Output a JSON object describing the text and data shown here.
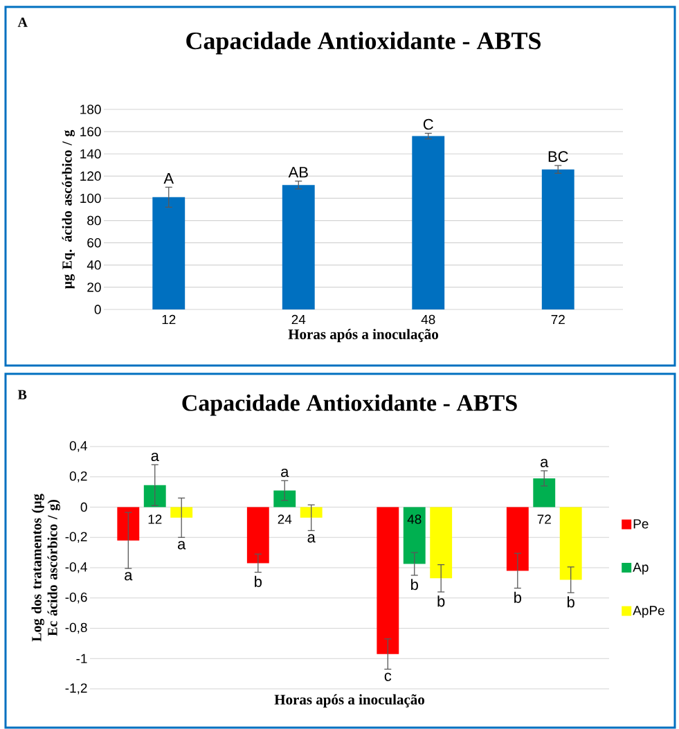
{
  "chart_data": [
    {
      "type": "bar",
      "title": "Capacidade Antioxidante - ABTS",
      "xlabel": "Horas após a inoculação",
      "ylabel": "µg Eq. ácido ascórbico / g",
      "categories": [
        "12",
        "24",
        "48",
        "72"
      ],
      "values": [
        101,
        112,
        156,
        126
      ],
      "errors": [
        9,
        3.5,
        2.5,
        3.5
      ],
      "color": "#0070c0",
      "ylim": [
        0,
        180
      ],
      "yticks": [
        0,
        20,
        40,
        60,
        80,
        100,
        120,
        140,
        160,
        180
      ],
      "grid": "y",
      "annotations": [
        "A",
        {
          "text": "A",
          "x": "12",
          "y": 110
        },
        {
          "text": "AB",
          "x": "24",
          "y": 115.5
        },
        {
          "text": "C",
          "x": "48",
          "y": 158.5
        },
        {
          "text": "BC",
          "x": "72",
          "y": 129.5
        }
      ]
    },
    {
      "type": "bar",
      "title": "Capacidade Antioxidante - ABTS",
      "xlabel": "Horas após a inoculação",
      "ylabel": "Log dos tratamentos (µg Ec ácido ascórbico / g)",
      "categories": [
        "12",
        "24",
        "48",
        "72"
      ],
      "series": [
        {
          "name": "Pe",
          "color": "#ff0000",
          "values": [
            -0.22,
            -0.37,
            -0.97,
            -0.42
          ],
          "errors": [
            0.185,
            0.06,
            0.1,
            0.115
          ]
        },
        {
          "name": "Ap",
          "color": "#00b050",
          "values": [
            0.145,
            0.11,
            -0.375,
            0.19
          ],
          "errors": [
            0.135,
            0.065,
            0.075,
            0.05
          ]
        },
        {
          "name": "ApPe",
          "color": "#ffff00",
          "values": [
            -0.07,
            -0.07,
            -0.47,
            -0.48
          ],
          "errors": [
            0.13,
            0.085,
            0.09,
            0.085
          ]
        }
      ],
      "ylim": [
        -1.2,
        0.4
      ],
      "yticks": [
        {
          "value": 0.4,
          "label": "0,4"
        },
        {
          "value": 0.2,
          "label": "0,2"
        },
        0,
        {
          "value": -0.2,
          "label": "-0,2"
        },
        {
          "value": -0.4,
          "label": "-0,4"
        },
        {
          "value": -0.6,
          "label": "-0,6"
        },
        {
          "value": -0.8,
          "label": "-0,8"
        },
        -1,
        {
          "value": -1.2,
          "label": "-1,2"
        }
      ],
      "grid": "y",
      "legend": "right",
      "annotations": [
        "B",
        "a",
        "a",
        "a",
        "b",
        "a",
        "a",
        "c",
        "b",
        "b",
        "b",
        "a",
        "b"
      ]
    }
  ]
}
